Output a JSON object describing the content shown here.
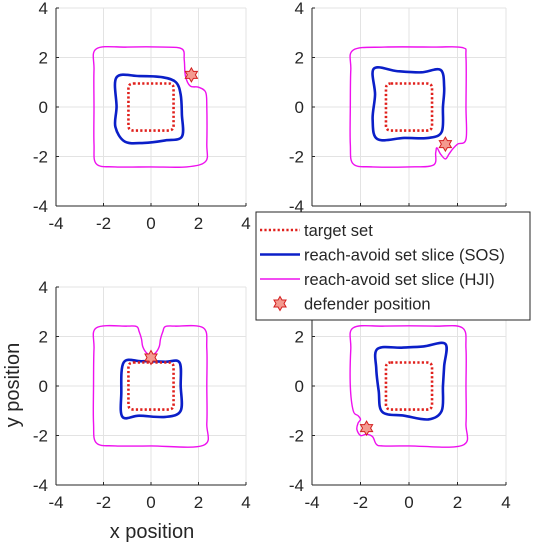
{
  "figure": {
    "xlabel": "x position",
    "ylabel": "y position"
  },
  "legend": {
    "placement": "center-right",
    "entries": [
      {
        "label": "target set",
        "color": "#e0201c",
        "style": "dotted",
        "marker": ""
      },
      {
        "label": "reach-avoid set slice (SOS)",
        "color": "#0b1fc8",
        "style": "solid",
        "marker": ""
      },
      {
        "label": "reach-avoid set slice (HJI)",
        "color": "#ee11ee",
        "style": "solid",
        "marker": ""
      },
      {
        "label": "defender position",
        "color": "#e0201c",
        "style": "none",
        "marker": "hexagram"
      }
    ]
  },
  "colors": {
    "target": "#e0201c",
    "sos": "#0b1fc8",
    "hji": "#ee11ee",
    "marker_fill": "#f49a8f",
    "marker_edge": "#d31f1f",
    "grid": "#e3e3e3",
    "axes": "#262626"
  },
  "chart_data": [
    {
      "type": "line",
      "panel": "top-left",
      "xlim": [
        -4,
        4
      ],
      "ylim": [
        -4,
        4
      ],
      "xticks": [
        -4,
        -2,
        0,
        2,
        4
      ],
      "yticks": [
        -4,
        -2,
        0,
        2,
        4
      ],
      "show_xticklabels": true,
      "show_yticklabels": true,
      "grid": true,
      "defender": [
        1.7,
        1.3
      ],
      "series": [
        {
          "name": "target set",
          "kind": "target",
          "points": [
            [
              -0.95,
              0.95
            ],
            [
              0.95,
              0.95
            ],
            [
              0.95,
              -0.95
            ],
            [
              -0.95,
              -0.95
            ]
          ]
        },
        {
          "name": "reach-avoid set slice (SOS)",
          "kind": "sos",
          "points": [
            [
              -1.45,
              1.2
            ],
            [
              -0.5,
              1.25
            ],
            [
              0.5,
              1.2
            ],
            [
              1.05,
              1.0
            ],
            [
              1.25,
              0.5
            ],
            [
              1.3,
              -0.3
            ],
            [
              1.3,
              -1.2
            ],
            [
              0.6,
              -1.35
            ],
            [
              -0.3,
              -1.45
            ],
            [
              -1.1,
              -1.4
            ],
            [
              -1.5,
              -0.8
            ],
            [
              -1.45,
              0.0
            ]
          ]
        },
        {
          "name": "reach-avoid set slice (HJI)",
          "kind": "hji",
          "points": [
            [
              -2.3,
              2.35
            ],
            [
              -1.0,
              2.42
            ],
            [
              0.5,
              2.42
            ],
            [
              1.3,
              2.35
            ],
            [
              1.4,
              1.9
            ],
            [
              1.45,
              1.25
            ],
            [
              1.65,
              0.85
            ],
            [
              2.0,
              0.8
            ],
            [
              2.3,
              0.6
            ],
            [
              2.35,
              0.0
            ],
            [
              2.35,
              -1.5
            ],
            [
              2.3,
              -2.2
            ],
            [
              1.5,
              -2.42
            ],
            [
              0.0,
              -2.42
            ],
            [
              -1.5,
              -2.42
            ],
            [
              -2.3,
              -2.3
            ],
            [
              -2.4,
              -1.5
            ],
            [
              -2.4,
              0.0
            ],
            [
              -2.4,
              1.5
            ]
          ]
        }
      ]
    },
    {
      "type": "line",
      "panel": "top-right",
      "xlim": [
        -4,
        4
      ],
      "ylim": [
        -4,
        4
      ],
      "xticks": [
        -4,
        -2,
        0,
        2,
        4
      ],
      "yticks": [
        -4,
        -2,
        0,
        2,
        4
      ],
      "show_xticklabels": false,
      "show_yticklabels": true,
      "grid": true,
      "defender": [
        1.5,
        -1.5
      ],
      "series": [
        {
          "name": "target set",
          "kind": "target",
          "points": [
            [
              -0.95,
              0.95
            ],
            [
              0.95,
              0.95
            ],
            [
              0.95,
              -0.95
            ],
            [
              -0.95,
              -0.95
            ]
          ]
        },
        {
          "name": "reach-avoid set slice (SOS)",
          "kind": "sos",
          "points": [
            [
              -1.45,
              1.55
            ],
            [
              -0.5,
              1.45
            ],
            [
              0.5,
              1.4
            ],
            [
              1.3,
              1.5
            ],
            [
              1.45,
              0.8
            ],
            [
              1.4,
              0.0
            ],
            [
              1.35,
              -1.0
            ],
            [
              0.8,
              -1.25
            ],
            [
              -0.2,
              -1.25
            ],
            [
              -1.3,
              -1.3
            ],
            [
              -1.5,
              -0.5
            ],
            [
              -1.4,
              0.5
            ]
          ]
        },
        {
          "name": "reach-avoid set slice (HJI)",
          "kind": "hji",
          "points": [
            [
              -2.3,
              2.3
            ],
            [
              -1.0,
              2.42
            ],
            [
              1.0,
              2.42
            ],
            [
              2.2,
              2.4
            ],
            [
              2.35,
              2.0
            ],
            [
              2.35,
              0.0
            ],
            [
              2.35,
              -1.3
            ],
            [
              2.0,
              -1.5
            ],
            [
              1.8,
              -1.7
            ],
            [
              1.65,
              -1.9
            ],
            [
              1.5,
              -2.1
            ],
            [
              1.3,
              -1.9
            ],
            [
              1.15,
              -1.65
            ],
            [
              1.1,
              -1.85
            ],
            [
              1.0,
              -2.35
            ],
            [
              0.0,
              -2.42
            ],
            [
              -1.5,
              -2.42
            ],
            [
              -2.3,
              -2.3
            ],
            [
              -2.42,
              -1.5
            ],
            [
              -2.42,
              0.0
            ],
            [
              -2.4,
              1.5
            ]
          ]
        }
      ]
    },
    {
      "type": "line",
      "panel": "bottom-left",
      "xlim": [
        -4,
        4
      ],
      "ylim": [
        -4,
        4
      ],
      "xticks": [
        -4,
        -2,
        0,
        2,
        4
      ],
      "yticks": [
        -4,
        -2,
        0,
        2,
        4
      ],
      "show_xticklabels": true,
      "show_yticklabels": true,
      "grid": true,
      "defender": [
        0.0,
        1.15
      ],
      "series": [
        {
          "name": "target set",
          "kind": "target",
          "points": [
            [
              -0.95,
              0.95
            ],
            [
              0.95,
              0.95
            ],
            [
              0.95,
              -0.95
            ],
            [
              -0.95,
              -0.95
            ]
          ]
        },
        {
          "name": "reach-avoid set slice (SOS)",
          "kind": "sos",
          "points": [
            [
              -1.15,
              0.95
            ],
            [
              -0.4,
              1.0
            ],
            [
              0.6,
              0.98
            ],
            [
              1.2,
              0.95
            ],
            [
              1.25,
              0.0
            ],
            [
              1.25,
              -1.0
            ],
            [
              0.6,
              -1.25
            ],
            [
              -0.5,
              -1.2
            ],
            [
              -1.2,
              -1.25
            ],
            [
              -1.25,
              -0.3
            ]
          ]
        },
        {
          "name": "reach-avoid set slice (HJI)",
          "kind": "hji",
          "points": [
            [
              -2.3,
              2.35
            ],
            [
              -1.0,
              2.42
            ],
            [
              -0.6,
              2.4
            ],
            [
              -0.5,
              2.2
            ],
            [
              -0.4,
              1.9
            ],
            [
              -0.35,
              1.6
            ],
            [
              -0.2,
              1.35
            ],
            [
              0.0,
              1.25
            ],
            [
              0.2,
              1.35
            ],
            [
              0.35,
              1.6
            ],
            [
              0.4,
              1.9
            ],
            [
              0.5,
              2.2
            ],
            [
              0.6,
              2.4
            ],
            [
              1.0,
              2.42
            ],
            [
              2.2,
              2.35
            ],
            [
              2.35,
              1.5
            ],
            [
              2.35,
              0.0
            ],
            [
              2.35,
              -1.5
            ],
            [
              2.2,
              -2.4
            ],
            [
              0.0,
              -2.42
            ],
            [
              -1.5,
              -2.42
            ],
            [
              -2.3,
              -2.3
            ],
            [
              -2.42,
              -1.5
            ],
            [
              -2.42,
              0.0
            ],
            [
              -2.4,
              1.5
            ]
          ]
        }
      ]
    },
    {
      "type": "line",
      "panel": "bottom-right",
      "xlim": [
        -4,
        4
      ],
      "ylim": [
        -4,
        4
      ],
      "xticks": [
        -4,
        -2,
        0,
        2,
        4
      ],
      "yticks": [
        -4,
        -2,
        0,
        2,
        4
      ],
      "show_xticklabels": true,
      "show_yticklabels": true,
      "grid": true,
      "defender": [
        -1.75,
        -1.7
      ],
      "series": [
        {
          "name": "target set",
          "kind": "target",
          "points": [
            [
              -0.95,
              0.95
            ],
            [
              0.95,
              0.95
            ],
            [
              0.95,
              -0.95
            ],
            [
              -0.95,
              -0.95
            ]
          ]
        },
        {
          "name": "reach-avoid set slice (SOS)",
          "kind": "sos",
          "points": [
            [
              -1.3,
              1.5
            ],
            [
              -0.3,
              1.55
            ],
            [
              0.6,
              1.6
            ],
            [
              1.5,
              1.7
            ],
            [
              1.45,
              0.8
            ],
            [
              1.4,
              0.0
            ],
            [
              1.35,
              -1.0
            ],
            [
              0.8,
              -1.35
            ],
            [
              -0.2,
              -1.2
            ],
            [
              -1.1,
              -1.05
            ],
            [
              -1.25,
              -0.2
            ],
            [
              -1.35,
              0.7
            ]
          ]
        },
        {
          "name": "reach-avoid set slice (HJI)",
          "kind": "hji",
          "points": [
            [
              -2.3,
              2.35
            ],
            [
              -1.0,
              2.42
            ],
            [
              1.0,
              2.42
            ],
            [
              2.2,
              2.35
            ],
            [
              2.35,
              1.5
            ],
            [
              2.35,
              0.0
            ],
            [
              2.35,
              -1.5
            ],
            [
              2.2,
              -2.4
            ],
            [
              0.0,
              -2.42
            ],
            [
              -1.1,
              -2.42
            ],
            [
              -1.35,
              -2.35
            ],
            [
              -1.5,
              -2.05
            ],
            [
              -1.75,
              -1.95
            ],
            [
              -2.0,
              -2.0
            ],
            [
              -2.15,
              -1.75
            ],
            [
              -2.1,
              -1.5
            ],
            [
              -2.0,
              -1.35
            ],
            [
              -2.1,
              -1.2
            ],
            [
              -2.3,
              -1.0
            ],
            [
              -2.42,
              0.0
            ],
            [
              -2.4,
              1.5
            ]
          ]
        }
      ]
    }
  ]
}
